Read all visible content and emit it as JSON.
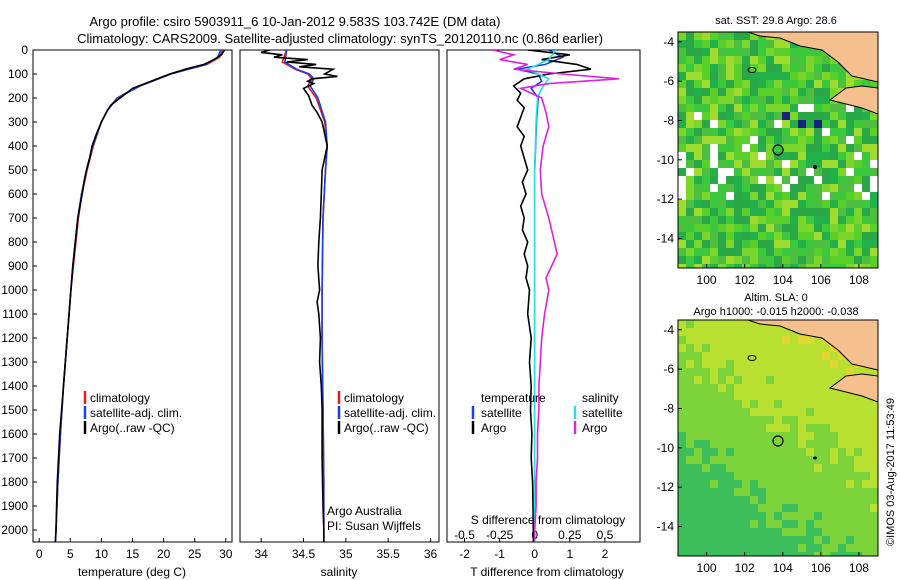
{
  "header": {
    "line1": "Argo profile: csiro 5903911_6 10-Jan-2012 9.583S 103.742E (DM data)",
    "line2": "Climatology: CARS2009. Satellite-adjusted climatology: synTS_20120110.nc (0.86d earlier)"
  },
  "colors": {
    "climatology": "#e02020",
    "satellite": "#1a3ee8",
    "argo": "#000000",
    "sat_salinity": "#22e0e8",
    "argo_salinity": "#e020e0",
    "land": "#f6c08e"
  },
  "chart_data": [
    {
      "type": "line",
      "id": "temperature",
      "xlabel": "temperature (deg C)",
      "xlim": [
        -1,
        31
      ],
      "ylim": [
        2050,
        0
      ],
      "xticks": [
        0,
        5,
        10,
        15,
        20,
        25,
        30
      ],
      "yticks": [
        0,
        100,
        200,
        300,
        400,
        500,
        600,
        700,
        800,
        900,
        1000,
        1100,
        1200,
        1300,
        1400,
        1500,
        1600,
        1700,
        1800,
        1900,
        2000
      ],
      "legend": {
        "position": "middle-left",
        "entries": [
          "climatology",
          "satellite-adj. clim.",
          "Argo(..raw -QC)"
        ]
      },
      "series": [
        {
          "name": "climatology",
          "color_key": "climatology",
          "depth": [
            0,
            30,
            60,
            100,
            150,
            200,
            250,
            300,
            400,
            500,
            600,
            700,
            800,
            900,
            1000,
            1200,
            1400,
            1600,
            1800,
            2000,
            2050
          ],
          "values": [
            29.5,
            29,
            27,
            21,
            16,
            12.5,
            11,
            10,
            8.7,
            7.7,
            6.9,
            6.3,
            5.9,
            5.5,
            5.1,
            4.5,
            3.9,
            3.4,
            3,
            2.7,
            2.6
          ]
        },
        {
          "name": "satellite-adj. clim.",
          "color_key": "satellite",
          "depth": [
            0,
            30,
            60,
            100,
            150,
            200,
            250,
            300,
            400,
            500,
            600,
            700,
            800,
            900,
            1000,
            1200,
            1400,
            1600,
            1800,
            2000,
            2050
          ],
          "values": [
            29.2,
            28.7,
            26.8,
            21.2,
            16.2,
            12.6,
            11,
            10,
            8.6,
            7.6,
            6.8,
            6.2,
            5.8,
            5.4,
            5.1,
            4.5,
            3.9,
            3.4,
            3,
            2.7,
            2.6
          ]
        },
        {
          "name": "Argo(..raw -QC)",
          "color_key": "argo",
          "depth": [
            0,
            20,
            40,
            60,
            80,
            100,
            130,
            160,
            200,
            230,
            260,
            300,
            350,
            400,
            450,
            500,
            550,
            600,
            700,
            800,
            900,
            1000,
            1100,
            1200,
            1300,
            1400,
            1500,
            1600,
            1700,
            1800,
            1900,
            2000,
            2050
          ],
          "values": [
            29.8,
            29.3,
            28.1,
            26.5,
            23.5,
            21,
            18,
            15,
            13,
            11.5,
            10.8,
            10,
            9.2,
            8.5,
            8.1,
            7.6,
            7.2,
            6.9,
            6.2,
            5.8,
            5.4,
            5.1,
            4.8,
            4.5,
            4.2,
            3.9,
            3.6,
            3.3,
            3.1,
            2.9,
            2.8,
            2.7,
            2.6
          ]
        }
      ]
    },
    {
      "type": "line",
      "id": "salinity",
      "xlabel": "salinity",
      "xlim": [
        33.75,
        36.1
      ],
      "ylim": [
        2050,
        0
      ],
      "xticks": [
        "34",
        "34.5",
        "35",
        "35.5",
        "36"
      ],
      "legend": {
        "position": "middle-right",
        "entries": [
          "climatology",
          "satellite-adj. clim.",
          "Argo(..raw -QC)"
        ]
      },
      "annotations": [
        "Argo Australia",
        "PI: Susan Wijffels"
      ],
      "series": [
        {
          "name": "climatology",
          "color_key": "climatology",
          "depth": [
            0,
            50,
            80,
            100,
            120,
            150,
            200,
            300,
            400,
            500,
            700,
            1000,
            1200,
            1500,
            1800,
            2000,
            2050
          ],
          "values": [
            34.3,
            34.25,
            34.4,
            34.55,
            34.6,
            34.55,
            34.65,
            34.75,
            34.78,
            34.76,
            34.73,
            34.72,
            34.72,
            34.73,
            34.74,
            34.74,
            34.74
          ]
        },
        {
          "name": "satellite-adj. clim.",
          "color_key": "satellite",
          "depth": [
            0,
            50,
            80,
            100,
            120,
            150,
            200,
            300,
            400,
            500,
            700,
            1000,
            1200,
            1500,
            1800,
            2000,
            2050
          ],
          "values": [
            34.3,
            34.28,
            34.42,
            34.57,
            34.62,
            34.58,
            34.67,
            34.76,
            34.78,
            34.76,
            34.73,
            34.72,
            34.72,
            34.73,
            34.74,
            34.74,
            34.74
          ]
        },
        {
          "name": "Argo(..raw -QC)",
          "color_key": "argo",
          "depth": [
            0,
            10,
            20,
            30,
            40,
            50,
            60,
            70,
            80,
            90,
            100,
            110,
            120,
            130,
            140,
            160,
            190,
            230,
            260,
            300,
            350,
            400,
            450,
            500,
            600,
            700,
            800,
            900,
            1000,
            1050,
            1100,
            1200,
            1300,
            1400,
            1500,
            1700,
            1900,
            2000,
            2050
          ],
          "values": [
            34.1,
            34.0,
            34.25,
            34.15,
            34.55,
            34.3,
            34.65,
            34.45,
            34.85,
            34.8,
            34.75,
            34.9,
            34.6,
            34.55,
            34.62,
            34.5,
            34.56,
            34.6,
            34.66,
            34.72,
            34.75,
            34.78,
            34.75,
            34.72,
            34.71,
            34.7,
            34.68,
            34.67,
            34.69,
            34.66,
            34.68,
            34.7,
            34.69,
            34.71,
            34.72,
            34.72,
            34.73,
            34.74,
            34.74
          ]
        }
      ]
    },
    {
      "type": "line",
      "id": "differences",
      "xlabel": "T difference from climatology",
      "xlabel2": "S difference from climatology",
      "xlim": [
        -2.5,
        3
      ],
      "ylim": [
        2050,
        0
      ],
      "xticks": [
        "-2",
        "-1",
        "0",
        "1",
        "2"
      ],
      "xticks_top": [
        "-0.5",
        "-0.25",
        "0",
        "0.25",
        "0.5"
      ],
      "legend": {
        "position": "top",
        "temperature_title": "temperature",
        "salinity_title": "salinity",
        "temperature_entries": [
          "satellite",
          "Argo"
        ],
        "salinity_entries": [
          "satellite",
          "Argo"
        ]
      },
      "series": [
        {
          "name": "T satellite",
          "color_key": "satellite",
          "depth": [
            0,
            30,
            60,
            80,
            100,
            130,
            160,
            200,
            300,
            500,
            800,
            1200,
            1600,
            2000,
            2050
          ],
          "values": [
            0.4,
            0.8,
            0.3,
            -0.5,
            0.1,
            0.2,
            -0.1,
            0.1,
            0.05,
            0,
            0,
            0,
            0,
            0,
            0
          ]
        },
        {
          "name": "T Argo",
          "color_key": "argo",
          "depth": [
            0,
            20,
            40,
            60,
            80,
            100,
            120,
            150,
            180,
            210,
            240,
            280,
            320,
            360,
            400,
            450,
            500,
            550,
            600,
            650,
            700,
            750,
            800,
            850,
            900,
            950,
            1000,
            1100,
            1200,
            1300,
            1400,
            1500,
            1600,
            1700,
            1800,
            1900,
            2000,
            2050
          ],
          "values": [
            -0.2,
            1.0,
            0.2,
            1.2,
            1.6,
            0.4,
            -0.3,
            -0.6,
            -0.4,
            -0.5,
            -0.3,
            -0.4,
            -0.5,
            -0.3,
            -0.4,
            -0.3,
            -0.2,
            -0.35,
            -0.25,
            -0.4,
            -0.3,
            -0.35,
            -0.2,
            -0.3,
            -0.2,
            -0.25,
            -0.15,
            -0.2,
            -0.1,
            -0.15,
            -0.1,
            -0.12,
            -0.08,
            -0.1,
            -0.06,
            -0.05,
            -0.04,
            -0.04
          ]
        },
        {
          "name": "S satellite",
          "color_key": "sat_salinity",
          "depth": [
            0,
            40,
            80,
            120,
            160,
            200,
            300,
            500,
            800,
            1200,
            1600,
            2000,
            2050
          ],
          "values": [
            0.15,
            0.1,
            -0.05,
            0.1,
            0.05,
            0.02,
            0.01,
            0,
            0,
            0,
            0,
            0,
            0
          ]
        },
        {
          "name": "S Argo",
          "color_key": "argo_salinity",
          "depth": [
            0,
            20,
            40,
            60,
            80,
            100,
            120,
            140,
            160,
            200,
            260,
            320,
            400,
            500,
            600,
            700,
            800,
            850,
            900,
            950,
            1000,
            1100,
            1200,
            1300,
            1400,
            1500,
            1600,
            1700,
            1800,
            1900,
            2000,
            2050
          ],
          "values": [
            -0.3,
            -0.15,
            -0.25,
            -0.05,
            -0.15,
            0.2,
            0.6,
            0.1,
            -0.1,
            0.05,
            0.08,
            0.1,
            0.06,
            0.04,
            0.05,
            0.1,
            0.14,
            0.16,
            0.12,
            0.08,
            0.1,
            0.07,
            0.05,
            0.04,
            0.03,
            0.03,
            0.02,
            0.02,
            0.01,
            0.01,
            0,
            0
          ]
        }
      ]
    },
    {
      "type": "heatmap",
      "id": "sst_map",
      "title": "sat. SST: 29.8 Argo: 28.6",
      "xlim": [
        98.5,
        109
      ],
      "ylim": [
        -15.5,
        -3.5
      ],
      "xticks": [
        "100",
        "102",
        "104",
        "106",
        "108"
      ],
      "yticks": [
        "-4",
        "-6",
        "-8",
        "-10",
        "-12",
        "-14"
      ],
      "profile_location": {
        "lon": 103.742,
        "lat": -9.583
      }
    },
    {
      "type": "heatmap",
      "id": "sla_map",
      "title": "Altim. SLA: 0",
      "subtitle": "Argo h1000: -0.015 h2000: -0.038",
      "xlim": [
        98.5,
        109
      ],
      "ylim": [
        -15.5,
        -3.5
      ],
      "xticks": [
        "100",
        "102",
        "104",
        "106",
        "108"
      ],
      "yticks": [
        "-4",
        "-6",
        "-8",
        "-10",
        "-12",
        "-14"
      ],
      "profile_location": {
        "lon": 103.742,
        "lat": -9.583
      }
    }
  ],
  "credit": "©IMOS 03-Aug-2017 11:53:49"
}
